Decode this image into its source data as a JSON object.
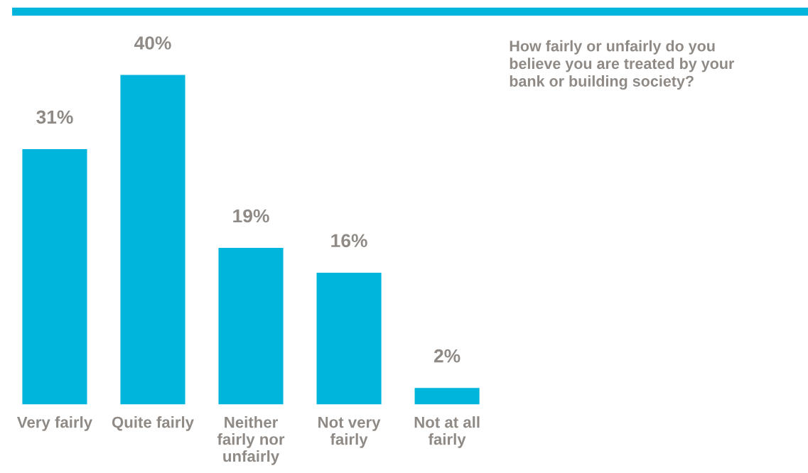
{
  "chart_data": {
    "type": "bar",
    "title": "How fairly or unfairly do you\nbelieve you are treated by your\nbank or building society?",
    "categories": [
      "Very fairly",
      "Quite fairly",
      "Neither\nfairly nor\nunfairly",
      "Not very\nfairly",
      "Not at all\nfairly"
    ],
    "values": [
      31,
      40,
      19,
      16,
      2
    ],
    "value_labels": [
      "31%",
      "40%",
      "19%",
      "16%",
      "2%"
    ],
    "color": "#00b5dc",
    "grid": false,
    "legend": false
  }
}
